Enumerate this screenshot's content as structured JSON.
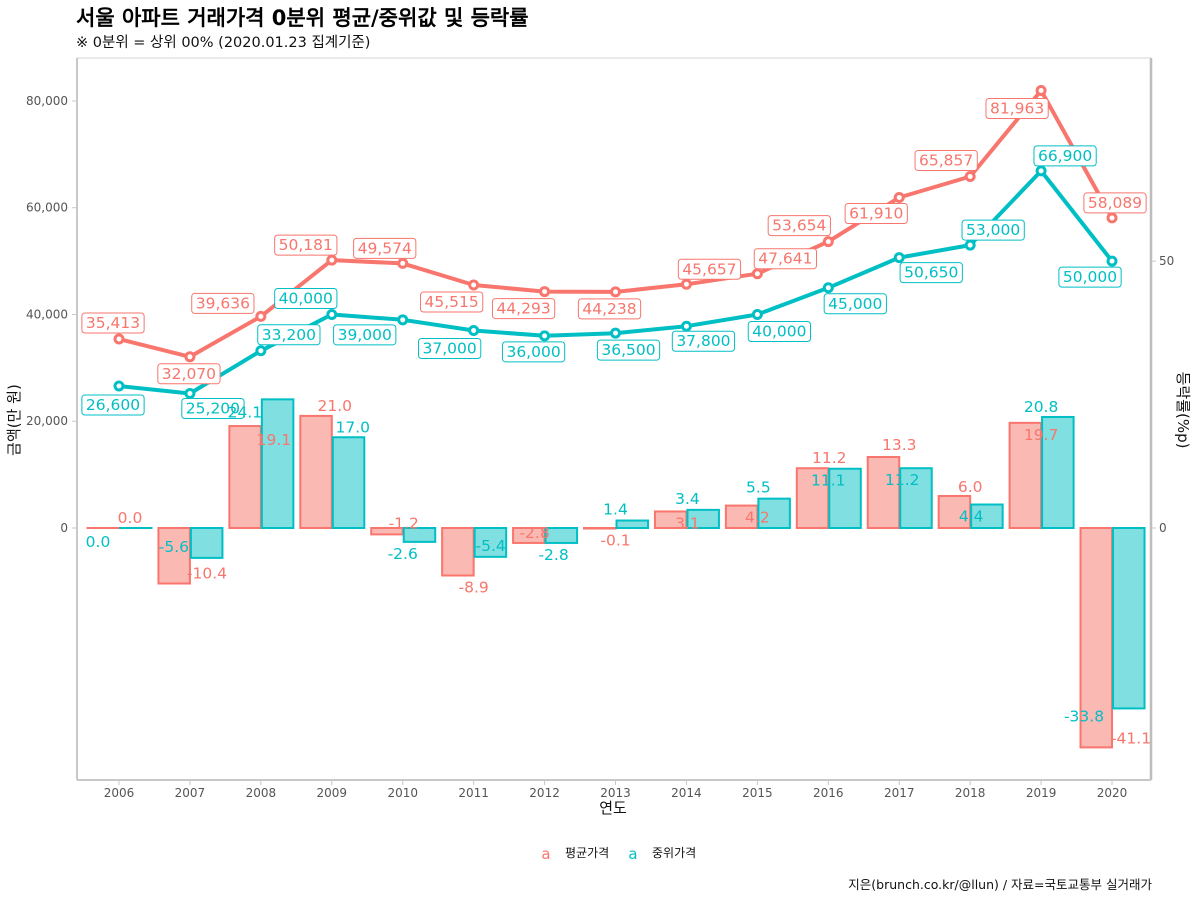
{
  "title": "서울 아파트 거래가격 0분위 평균/중위값 및 등락률",
  "subtitle": "※ 0분위 = 상위 00% (2020.01.23 집계기준)",
  "caption": "지은(brunch.co.kr/@llun) / 자료=국토교통부 실거래가",
  "colors": {
    "avg": "#F8766D",
    "median": "#00BFC4",
    "avg_fill": "#FBB9B4",
    "median_fill": "#80DFE1",
    "axis": "#C8C8C8"
  },
  "legend": {
    "key_glyph": "a",
    "items": [
      {
        "label": "평균가격",
        "color": "#F8766D"
      },
      {
        "label": "중위가격",
        "color": "#00BFC4"
      }
    ],
    "position": "bottom"
  },
  "chart_data": [
    {
      "type": "line",
      "title": "서울 아파트 거래가격 0분위 평균/중위값 및 등락률",
      "xlabel": "연도",
      "ylabel": "금액(만 원)",
      "x": [
        2006,
        2007,
        2008,
        2009,
        2010,
        2011,
        2012,
        2013,
        2014,
        2015,
        2016,
        2017,
        2018,
        2019,
        2020
      ],
      "xlim": [
        2005.4,
        2020.55
      ],
      "ylim": [
        -47200,
        88000
      ],
      "yticks": [
        0,
        20000,
        40000,
        60000,
        80000
      ],
      "ytick_labels": [
        "0",
        "20,000",
        "40,000",
        "60,000",
        "80,000"
      ],
      "xtick_labels": [
        "2006",
        "2007",
        "2008",
        "2009",
        "2010",
        "2011",
        "2012",
        "2013",
        "2014",
        "2015",
        "2016",
        "2017",
        "2018",
        "2019",
        "2020"
      ],
      "grid": false,
      "series": [
        {
          "name": "평균가격",
          "values": [
            35413,
            32070,
            39636,
            50181,
            49574,
            45515,
            44293,
            44238,
            45657,
            47641,
            53654,
            61910,
            65857,
            81963,
            58089
          ],
          "labels": [
            "35,413",
            "32,070",
            "39,636",
            "50,181",
            "49,574",
            "45,515",
            "44,293",
            "44,238",
            "45,657",
            "47,641",
            "53,654",
            "61,910",
            "65,857",
            "81,963",
            "58,089"
          ]
        },
        {
          "name": "중위가격",
          "values": [
            26600,
            25200,
            33200,
            40000,
            39000,
            37000,
            36000,
            36500,
            37800,
            40000,
            45000,
            50650,
            53000,
            66900,
            50000
          ],
          "labels": [
            "26,600",
            "25,200",
            "33,200",
            "40,000",
            "39,000",
            "37,000",
            "36,000",
            "36,500",
            "37,800",
            "40,000",
            "45,000",
            "50,650",
            "53,000",
            "66,900",
            "50,000"
          ]
        }
      ]
    },
    {
      "type": "bar",
      "ylabel": "등락률(%p)",
      "axis": "right",
      "categories": [
        "2006",
        "2007",
        "2008",
        "2009",
        "2010",
        "2011",
        "2012",
        "2013",
        "2014",
        "2015",
        "2016",
        "2017",
        "2018",
        "2019",
        "2020"
      ],
      "ylim": [
        -47.2,
        88.0
      ],
      "yticks": [
        0,
        50
      ],
      "ytick_labels": [
        "0",
        "50"
      ],
      "series": [
        {
          "name": "평균가격",
          "values": [
            0.0,
            -10.4,
            19.1,
            21.0,
            -1.2,
            -8.9,
            -2.8,
            -0.1,
            3.1,
            4.2,
            11.2,
            13.3,
            6.0,
            19.7,
            -41.1
          ],
          "labels": [
            "0.0",
            "-10.4",
            "19.1",
            "21.0",
            "-1.2",
            "-8.9",
            "-2.8",
            "-0.1",
            "3.1",
            "4.2",
            "11.2",
            "13.3",
            "6.0",
            "19.7",
            "-41.1"
          ]
        },
        {
          "name": "중위가격",
          "values": [
            0.0,
            -5.6,
            24.1,
            17.0,
            -2.6,
            -5.4,
            -2.8,
            1.4,
            3.4,
            5.5,
            11.1,
            11.2,
            4.4,
            20.8,
            -33.8
          ],
          "labels": [
            "0.0",
            "-5.6",
            "24.1",
            "17.0",
            "-2.6",
            "-5.4",
            "-2.8",
            "1.4",
            "3.4",
            "5.5",
            "11.1",
            "11.2",
            "4.4",
            "20.8",
            "-33.8"
          ]
        }
      ]
    }
  ]
}
